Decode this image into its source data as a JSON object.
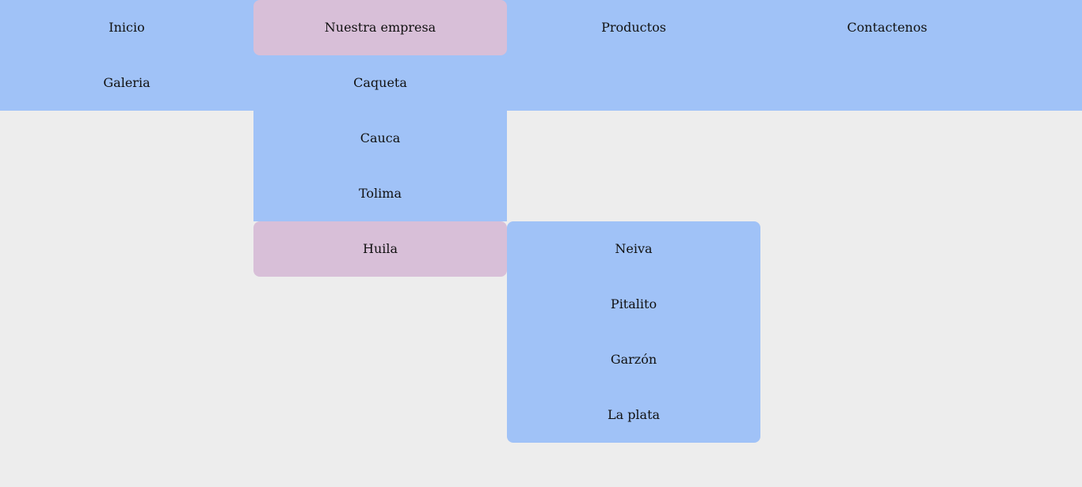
{
  "nav": {
    "top_items": [
      {
        "label": "Inicio"
      },
      {
        "label": "Nuestra empresa"
      },
      {
        "label": "Productos"
      },
      {
        "label": "Contactenos"
      },
      {
        "label": "Galeria"
      }
    ],
    "empresa_submenu": [
      {
        "label": "Caqueta"
      },
      {
        "label": "Cauca"
      },
      {
        "label": "Tolima"
      },
      {
        "label": "Huila"
      }
    ],
    "huila_submenu": [
      {
        "label": "Neiva"
      },
      {
        "label": "Pitalito"
      },
      {
        "label": "Garzón"
      },
      {
        "label": "La plata"
      }
    ]
  },
  "colors": {
    "page_background": "#ededed",
    "menu_background": "#a0c2f7",
    "active_background": "#d8bfd8",
    "text": "#111111"
  }
}
